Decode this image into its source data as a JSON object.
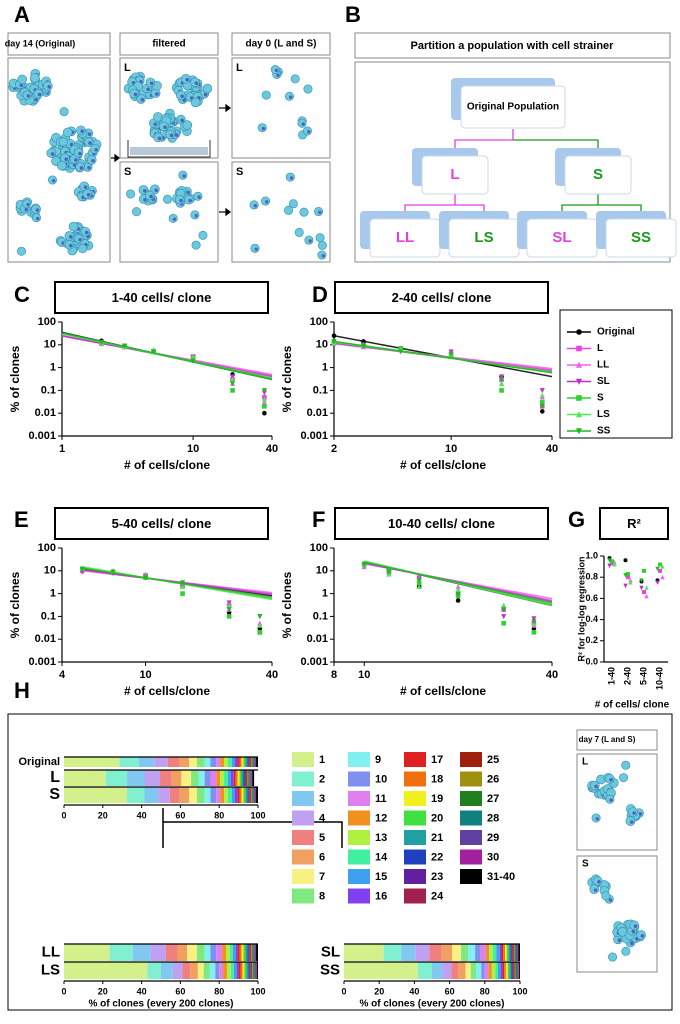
{
  "panel_labels": [
    "A",
    "B",
    "C",
    "D",
    "E",
    "F",
    "G",
    "H"
  ],
  "A": {
    "headers": [
      "day 14 (Original)",
      "filtered",
      "day 0 (L and S)"
    ],
    "box_labels": [
      "L",
      "S",
      "L",
      "S"
    ]
  },
  "B": {
    "title": "Partition a population with cell strainer",
    "nodes": [
      {
        "label": "Original Population",
        "color": "#000000"
      },
      {
        "label": "L",
        "color": "#e040e0"
      },
      {
        "label": "S",
        "color": "#1a9a1a"
      },
      {
        "label": "LL",
        "color": "#e040e0"
      },
      {
        "label": "LS",
        "color": "#1a9a1a"
      },
      {
        "label": "SL",
        "color": "#e040e0"
      },
      {
        "label": "SS",
        "color": "#1a9a1a"
      }
    ]
  },
  "legend": {
    "entries": [
      {
        "name": "Original",
        "color": "#000000",
        "marker": "circle"
      },
      {
        "name": "L",
        "color": "#e845e0",
        "marker": "square"
      },
      {
        "name": "LL",
        "color": "#f060f0",
        "marker": "triangle"
      },
      {
        "name": "SL",
        "color": "#c030c8",
        "marker": "triangle-down"
      },
      {
        "name": "S",
        "color": "#30d030",
        "marker": "square"
      },
      {
        "name": "LS",
        "color": "#50e850",
        "marker": "triangle"
      },
      {
        "name": "SS",
        "color": "#20b820",
        "marker": "triangle-down"
      }
    ]
  },
  "chart_data": [
    {
      "type": "scatter",
      "title": "1-40 cells/ clone",
      "xlabel": "# of cells/clone",
      "ylabel": "% of clones",
      "xscale": "log",
      "yscale": "log",
      "xlim": [
        1,
        40
      ],
      "ylim": [
        0.001,
        100
      ],
      "xticks": [
        1,
        10,
        40
      ],
      "yticks": [
        0.001,
        0.01,
        0.1,
        1,
        10,
        100
      ],
      "x": [
        2,
        3,
        5,
        10,
        20,
        35
      ],
      "fit_x": [
        1,
        40
      ],
      "series": [
        {
          "values": [
            15,
            9,
            5,
            2,
            0.5,
            0.01
          ],
          "fit": [
            35,
            0.3
          ]
        },
        {
          "values": [
            12,
            8,
            5,
            3,
            0.3,
            0.05
          ],
          "fit": [
            25,
            0.45
          ]
        },
        {
          "values": [
            11,
            8,
            6,
            3,
            0.2,
            0.03
          ],
          "fit": [
            24,
            0.5
          ]
        },
        {
          "values": [
            12,
            9,
            5,
            3,
            0.4,
            0.08
          ],
          "fit": [
            25,
            0.4
          ]
        },
        {
          "values": [
            13,
            9,
            5,
            2.5,
            0.1,
            0.02
          ],
          "fit": [
            32,
            0.3
          ]
        },
        {
          "values": [
            12,
            8,
            6,
            3,
            0.3,
            0.04
          ],
          "fit": [
            30,
            0.35
          ]
        },
        {
          "values": [
            13,
            9,
            5,
            2,
            0.2,
            0.1
          ],
          "fit": [
            33,
            0.32
          ]
        }
      ]
    },
    {
      "type": "scatter",
      "title": "2-40 cells/ clone",
      "xlabel": "# of cells/clone",
      "ylabel": "% of clones",
      "xscale": "log",
      "yscale": "log",
      "xlim": [
        2,
        40
      ],
      "ylim": [
        0.001,
        100
      ],
      "xticks": [
        2,
        10,
        40
      ],
      "yticks": [
        0.001,
        0.01,
        0.1,
        1,
        10,
        100
      ],
      "x": [
        2,
        3,
        5,
        10,
        20,
        35
      ],
      "fit_x": [
        2,
        40
      ],
      "series": [
        {
          "values": [
            25,
            14,
            7,
            3,
            0.4,
            0.012
          ],
          "fit": [
            25,
            0.4
          ]
        },
        {
          "values": [
            12,
            9,
            6,
            4,
            0.3,
            0.02
          ],
          "fit": [
            12,
            0.8
          ]
        },
        {
          "values": [
            11,
            8,
            7,
            4,
            0.2,
            0.05
          ],
          "fit": [
            11,
            0.9
          ]
        },
        {
          "values": [
            12,
            10,
            6,
            5,
            0.4,
            0.1
          ],
          "fit": [
            12,
            0.7
          ]
        },
        {
          "values": [
            13,
            9,
            7,
            3,
            0.1,
            0.03
          ],
          "fit": [
            14,
            0.6
          ]
        },
        {
          "values": [
            12,
            10,
            6,
            4,
            0.2,
            0.06
          ],
          "fit": [
            13,
            0.65
          ]
        },
        {
          "values": [
            14,
            9,
            5,
            4,
            0.3,
            0.02
          ],
          "fit": [
            14,
            0.6
          ]
        }
      ]
    },
    {
      "type": "scatter",
      "title": "5-40 cells/ clone",
      "xlabel": "# of cells/clone",
      "ylabel": "% of clones",
      "xscale": "log",
      "yscale": "log",
      "xlim": [
        4,
        40
      ],
      "ylim": [
        0.001,
        100
      ],
      "xticks": [
        4,
        10,
        40
      ],
      "yticks": [
        0.001,
        0.01,
        0.1,
        1,
        10,
        100
      ],
      "x": [
        5,
        7,
        10,
        15,
        25,
        35
      ],
      "fit_x": [
        5,
        40
      ],
      "series": [
        {
          "values": [
            10,
            8,
            6,
            3,
            0.15,
            0.03
          ],
          "fit": [
            12,
            0.8
          ]
        },
        {
          "values": [
            11,
            9,
            6,
            2,
            0.3,
            0.02
          ],
          "fit": [
            11,
            1
          ]
        },
        {
          "values": [
            10,
            9,
            7,
            3,
            0.2,
            0.05
          ],
          "fit": [
            10,
            1.1
          ]
        },
        {
          "values": [
            9,
            8,
            6,
            2,
            0.4,
            0.1
          ],
          "fit": [
            11,
            0.9
          ]
        },
        {
          "values": [
            12,
            9,
            5,
            1,
            0.1,
            0.02
          ],
          "fit": [
            14,
            0.6
          ]
        },
        {
          "values": [
            13,
            10,
            6,
            2,
            0.3,
            0.04
          ],
          "fit": [
            15,
            0.55
          ]
        },
        {
          "values": [
            12,
            9,
            5,
            3,
            0.2,
            0.1
          ],
          "fit": [
            13,
            0.7
          ]
        }
      ]
    },
    {
      "type": "scatter",
      "title": "10-40 cells/ clone",
      "xlabel": "# of cells/clone",
      "ylabel": "% of clones",
      "xscale": "log",
      "yscale": "log",
      "xlim": [
        8,
        40
      ],
      "ylim": [
        0.001,
        100
      ],
      "xticks": [
        8,
        10,
        40
      ],
      "yticks": [
        0.001,
        0.01,
        0.1,
        1,
        10,
        100
      ],
      "x": [
        10,
        12,
        15,
        20,
        28,
        35
      ],
      "fit_x": [
        10,
        40
      ],
      "series": [
        {
          "values": [
            20,
            8,
            2,
            0.5,
            0.2,
            0.03
          ],
          "fit": [
            25,
            0.3
          ]
        },
        {
          "values": [
            18,
            10,
            5,
            1,
            0.2,
            0.05
          ],
          "fit": [
            22,
            0.5
          ]
        },
        {
          "values": [
            15,
            9,
            3,
            2,
            0.3,
            0.04
          ],
          "fit": [
            20,
            0.6
          ]
        },
        {
          "values": [
            17,
            8,
            4,
            1,
            0.1,
            0.08
          ],
          "fit": [
            22,
            0.45
          ]
        },
        {
          "values": [
            20,
            10,
            3,
            0.8,
            0.05,
            0.02
          ],
          "fit": [
            25,
            0.35
          ]
        },
        {
          "values": [
            18,
            7,
            2,
            1.5,
            0.3,
            0.05
          ],
          "fit": [
            27,
            0.3
          ]
        },
        {
          "values": [
            19,
            9,
            4,
            0.9,
            0.2,
            0.06
          ],
          "fit": [
            24,
            0.4
          ]
        }
      ]
    },
    {
      "type": "dot",
      "title": "R²",
      "xlabel": "# of cells/ clone",
      "ylabel": "R² for log-log regression",
      "categories": [
        "1-40",
        "2-40",
        "5-40",
        "10-40"
      ],
      "ylim": [
        0,
        1
      ],
      "yticks": [
        {
          "value": 0,
          "label": "0.0"
        },
        0.2,
        0.4,
        0.6,
        0.8,
        {
          "value": 1,
          "label": "1.0"
        }
      ],
      "series": [
        {
          "values": [
            0.98,
            0.96,
            0.76,
            0.77
          ]
        },
        {
          "values": [
            0.93,
            0.8,
            0.66,
            0.86
          ]
        },
        {
          "values": [
            0.94,
            0.77,
            0.62,
            0.8
          ]
        },
        {
          "values": [
            0.91,
            0.72,
            0.7,
            0.75
          ]
        },
        {
          "values": [
            0.95,
            0.83,
            0.86,
            0.92
          ]
        },
        {
          "values": [
            0.92,
            0.75,
            0.7,
            0.9
          ]
        },
        {
          "values": [
            0.96,
            0.82,
            0.77,
            0.88
          ]
        }
      ]
    },
    {
      "type": "stacked_bar",
      "xlim": [
        0,
        100
      ],
      "xticks": [
        0,
        20,
        40,
        60,
        80,
        100
      ],
      "legend": [
        {
          "name": "1",
          "color": "#d4f08a"
        },
        {
          "name": "2",
          "color": "#80f0d0"
        },
        {
          "name": "3",
          "color": "#80c8f0"
        },
        {
          "name": "4",
          "color": "#c0a0f0"
        },
        {
          "name": "5",
          "color": "#f08080"
        },
        {
          "name": "6",
          "color": "#f0a060"
        },
        {
          "name": "7",
          "color": "#f8f080"
        },
        {
          "name": "8",
          "color": "#80e880"
        },
        {
          "name": "9",
          "color": "#80f0f0"
        },
        {
          "name": "10",
          "color": "#8090f0"
        },
        {
          "name": "11",
          "color": "#e080f0"
        },
        {
          "name": "12",
          "color": "#f09020"
        },
        {
          "name": "13",
          "color": "#b0f040"
        },
        {
          "name": "14",
          "color": "#40f0a0"
        },
        {
          "name": "15",
          "color": "#40a0f0"
        },
        {
          "name": "16",
          "color": "#8040f0"
        },
        {
          "name": "17",
          "color": "#e02020"
        },
        {
          "name": "18",
          "color": "#f07010"
        },
        {
          "name": "19",
          "color": "#f0f020"
        },
        {
          "name": "20",
          "color": "#40e040"
        },
        {
          "name": "21",
          "color": "#20a0a0"
        },
        {
          "name": "22",
          "color": "#2040c0"
        },
        {
          "name": "23",
          "color": "#6020a0"
        },
        {
          "name": "24",
          "color": "#a02050"
        },
        {
          "name": "25",
          "color": "#a02010"
        },
        {
          "name": "26",
          "color": "#a09010"
        },
        {
          "name": "27",
          "color": "#208020"
        },
        {
          "name": "28",
          "color": "#108080"
        },
        {
          "name": "29",
          "color": "#6040a0"
        },
        {
          "name": "30",
          "color": "#a020a0"
        },
        {
          "name": "31-40",
          "color": "#000000"
        }
      ],
      "groups": [
        {
          "categories": [
            "Original",
            "L",
            "S"
          ],
          "values": [
            [
              28.5,
              10,
              8,
              7,
              6,
              5,
              4,
              4,
              3,
              3,
              2,
              2,
              2,
              2,
              1.5,
              1.5,
              1,
              1,
              1,
              1,
              1,
              0.5,
              0.5,
              0.5,
              0.5,
              0.5,
              0.5,
              0.5,
              0.5,
              0.5,
              1
            ],
            [
              21.5,
              11,
              9,
              8,
              6,
              5,
              5,
              4,
              3,
              3,
              3,
              2,
              2,
              2,
              1.5,
              1.5,
              1,
              1,
              1,
              1,
              1,
              0.5,
              0.5,
              0.5,
              0.5,
              0.5,
              0.5,
              0.5,
              0.5,
              0.5,
              1
            ],
            [
              32.5,
              9,
              7,
              6,
              5,
              5,
              4,
              4,
              3,
              3,
              2,
              2,
              2,
              2,
              1.5,
              1.5,
              1,
              1,
              1,
              1,
              1,
              0.5,
              0.5,
              0.5,
              0.5,
              0.5,
              0.5,
              0.5,
              0.5,
              0.5,
              1
            ]
          ]
        },
        {
          "categories": [
            "LL",
            "LS"
          ],
          "xlabel": "% of clones (every 200 clones)",
          "values": [
            [
              23.5,
              12,
              9,
              8,
              6,
              5,
              5,
              4,
              3,
              3,
              3,
              2,
              2,
              1.5,
              1.5,
              1,
              1,
              1,
              1,
              1,
              1,
              0.5,
              0.5,
              0.5,
              0.5,
              0.5,
              0.5,
              0.5,
              0.5,
              0.5,
              1
            ],
            [
              43,
              7,
              6,
              5,
              4,
              4,
              3,
              3,
              3,
              2,
              2,
              2,
              2,
              1.5,
              1.5,
              1,
              1,
              1,
              1,
              1,
              1,
              0.5,
              0.5,
              0.5,
              0.5,
              0.5,
              0.5,
              0.5,
              0.5,
              0.5,
              0.5
            ]
          ]
        },
        {
          "categories": [
            "SL",
            "SS"
          ],
          "xlabel": "% of clones (every 200 clones)",
          "values": [
            [
              22.5,
              10,
              8,
              8,
              7,
              6,
              5,
              4,
              4,
              3,
              3,
              2,
              2,
              2,
              2,
              1,
              1,
              1,
              1,
              1,
              1,
              0.5,
              0.5,
              0.5,
              0.5,
              0.5,
              0.5,
              0.5,
              0.5,
              0.5,
              1
            ],
            [
              42,
              8,
              6,
              5,
              4,
              4,
              3,
              3,
              3,
              2,
              2,
              2,
              2,
              1.5,
              1.5,
              1,
              1,
              1,
              1,
              1,
              1,
              0.5,
              0.5,
              0.5,
              0.5,
              0.5,
              0.5,
              0.5,
              0.5,
              0.5,
              0.5
            ]
          ]
        }
      ]
    }
  ],
  "H_inset": {
    "title": "day 7 (L and S)",
    "labels": [
      "L",
      "S"
    ]
  }
}
